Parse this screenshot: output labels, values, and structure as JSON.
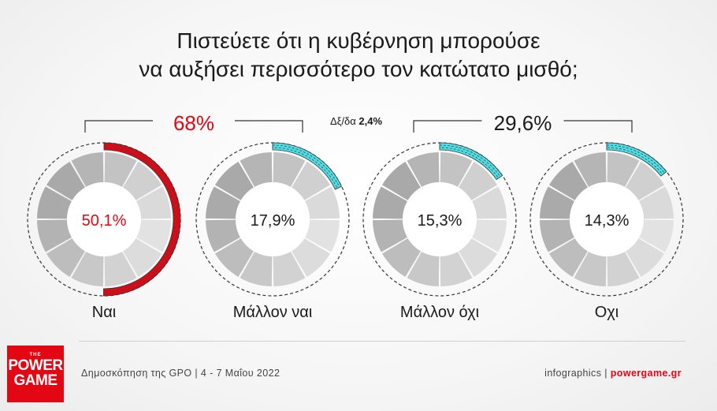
{
  "title_line1": "Πιστεύετε ότι η κυβέρνηση μπορούσε",
  "title_line2": "να αυξήσει περισσότερο τον κατώτατο μισθό;",
  "chart_data": {
    "type": "pie",
    "title": "Πιστεύετε ότι η κυβέρνηση μπορούσε να αυξήσει περισσότερο τον κατώτατο μισθό;",
    "categories": [
      "Ναι",
      "Μάλλον ναι",
      "Μάλλον όχι",
      "Οχι"
    ],
    "values": [
      50.1,
      17.9,
      15.3,
      14.3
    ],
    "value_labels": [
      "50,1%",
      "17,9%",
      "15,3%",
      "14,3%"
    ],
    "group_totals": [
      {
        "members": [
          "Ναι",
          "Μάλλον ναι"
        ],
        "label": "68%"
      },
      {
        "members": [
          "Μάλλον όχι",
          "Οχι"
        ],
        "label": "29,6%"
      }
    ],
    "dont_know": {
      "label": "Δξ/δα",
      "value": 2.4,
      "value_label": "2,4%"
    },
    "colors": {
      "Ναι": "#e30613",
      "Μάλλον ναι": "#4ee0e8",
      "Μάλλον όχι": "#4ee0e8",
      "Οχι": "#4ee0e8"
    }
  },
  "footer": {
    "source": "Δημοσκόπηση της GPO | 4 - 7 Μαΐου 2022",
    "credit_prefix": "infographics | ",
    "credit_site": "powergame.gr"
  },
  "logo": {
    "the": "THE",
    "line1": "POWER",
    "line2": "GAME"
  }
}
